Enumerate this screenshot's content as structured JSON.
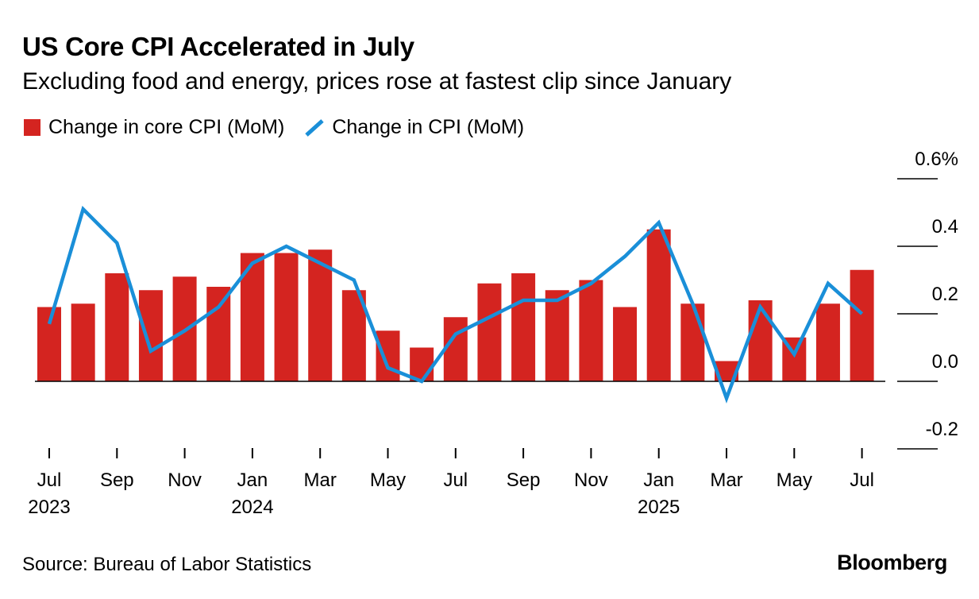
{
  "title": "US Core CPI Accelerated in July",
  "subtitle": "Excluding food and energy, prices rose at fastest clip since January",
  "source": "Source: Bureau of Labor Statistics",
  "brand": "Bloomberg",
  "colors": {
    "bar": "#d42420",
    "line": "#1a8fd8",
    "axis": "#000000"
  },
  "chart_data": {
    "type": "bar",
    "categories": [
      "Jul 2023",
      "Aug 2023",
      "Sep 2023",
      "Oct 2023",
      "Nov 2023",
      "Dec 2023",
      "Jan 2024",
      "Feb 2024",
      "Mar 2024",
      "Apr 2024",
      "May 2024",
      "Jun 2024",
      "Jul 2024",
      "Aug 2024",
      "Sep 2024",
      "Oct 2024",
      "Nov 2024",
      "Dec 2024",
      "Jan 2025",
      "Feb 2025",
      "Mar 2025",
      "Apr 2025",
      "May 2025",
      "Jun 2025",
      "Jul 2025"
    ],
    "series": [
      {
        "name": "Change in core CPI (MoM)",
        "type": "bar",
        "values": [
          0.22,
          0.23,
          0.32,
          0.27,
          0.31,
          0.28,
          0.38,
          0.38,
          0.39,
          0.27,
          0.15,
          0.1,
          0.19,
          0.29,
          0.32,
          0.27,
          0.3,
          0.22,
          0.45,
          0.23,
          0.06,
          0.24,
          0.13,
          0.23,
          0.33
        ]
      },
      {
        "name": "Change in CPI (MoM)",
        "type": "line",
        "values": [
          0.17,
          0.51,
          0.41,
          0.09,
          0.15,
          0.22,
          0.35,
          0.4,
          0.35,
          0.3,
          0.04,
          -0.0,
          0.14,
          0.19,
          0.24,
          0.24,
          0.29,
          0.37,
          0.47,
          0.23,
          -0.05,
          0.22,
          0.08,
          0.29,
          0.2
        ]
      }
    ],
    "x_tick_labels": [
      {
        "index": 0,
        "label": "Jul",
        "sublabel": "2023"
      },
      {
        "index": 2,
        "label": "Sep",
        "sublabel": ""
      },
      {
        "index": 4,
        "label": "Nov",
        "sublabel": ""
      },
      {
        "index": 6,
        "label": "Jan",
        "sublabel": "2024"
      },
      {
        "index": 8,
        "label": "Mar",
        "sublabel": ""
      },
      {
        "index": 10,
        "label": "May",
        "sublabel": ""
      },
      {
        "index": 12,
        "label": "Jul",
        "sublabel": ""
      },
      {
        "index": 14,
        "label": "Sep",
        "sublabel": ""
      },
      {
        "index": 16,
        "label": "Nov",
        "sublabel": ""
      },
      {
        "index": 18,
        "label": "Jan",
        "sublabel": "2025"
      },
      {
        "index": 20,
        "label": "Mar",
        "sublabel": ""
      },
      {
        "index": 22,
        "label": "May",
        "sublabel": ""
      },
      {
        "index": 24,
        "label": "Jul",
        "sublabel": ""
      }
    ],
    "y_ticks": [
      {
        "value": 0.6,
        "label": "0.6%"
      },
      {
        "value": 0.4,
        "label": "0.4"
      },
      {
        "value": 0.2,
        "label": "0.2"
      },
      {
        "value": 0.0,
        "label": "0.0"
      },
      {
        "value": -0.2,
        "label": "-0.2"
      }
    ],
    "ylim": [
      -0.2,
      0.6
    ],
    "xlabel": "",
    "ylabel": "",
    "grid": false,
    "legend_position": "top-left"
  }
}
